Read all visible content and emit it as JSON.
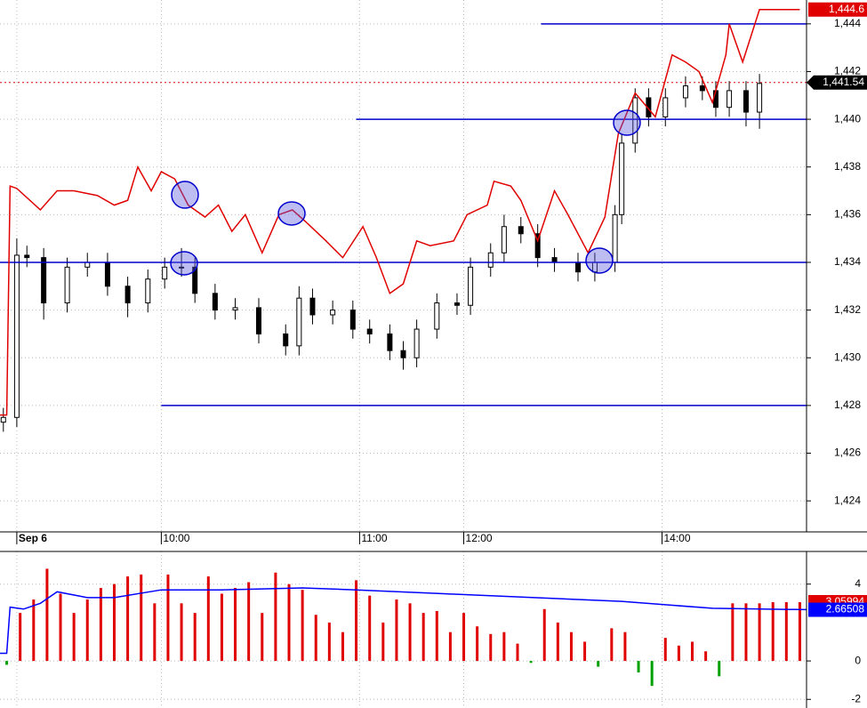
{
  "chart_data": [
    {
      "type": "candlestick",
      "x": [
        1,
        5,
        8,
        13,
        20,
        26,
        32,
        38,
        44,
        49,
        54,
        58,
        64,
        70,
        77,
        85,
        89,
        93,
        99,
        105,
        110,
        116,
        120,
        124,
        130,
        136,
        140,
        146,
        150,
        155,
        160,
        165,
        172,
        177,
        183,
        185,
        189,
        193,
        198,
        204,
        209,
        213,
        217,
        222,
        226
      ],
      "open": [
        1427.3,
        1427.5,
        1434.3,
        1434.2,
        1432.3,
        1433.8,
        1434.0,
        1433.0,
        1432.3,
        1433.3,
        1433.8,
        1433.8,
        1432.7,
        1432.0,
        1432.1,
        1431.0,
        1430.5,
        1432.5,
        1431.8,
        1432.0,
        1431.2,
        1431.0,
        1430.3,
        1430.0,
        1431.2,
        1432.3,
        1432.2,
        1433.8,
        1434.4,
        1435.5,
        1435.2,
        1434.2,
        1434.0,
        1433.6,
        1434.0,
        1436.0,
        1439.0,
        1440.9,
        1440.1,
        1440.9,
        1441.4,
        1441.2,
        1440.5,
        1441.2,
        1440.3
      ],
      "high": [
        1427.9,
        1435.0,
        1434.7,
        1434.6,
        1434.2,
        1434.4,
        1434.4,
        1433.4,
        1433.7,
        1434.2,
        1434.6,
        1434.2,
        1433.1,
        1432.5,
        1432.5,
        1431.4,
        1433.0,
        1432.9,
        1432.4,
        1432.4,
        1431.6,
        1431.4,
        1430.7,
        1431.6,
        1432.7,
        1432.7,
        1434.2,
        1434.8,
        1436.0,
        1435.9,
        1435.6,
        1434.6,
        1434.4,
        1434.4,
        1436.4,
        1439.4,
        1441.3,
        1441.3,
        1441.3,
        1441.8,
        1441.8,
        1441.6,
        1441.6,
        1441.6,
        1441.9
      ],
      "low": [
        1426.9,
        1427.1,
        1433.8,
        1431.6,
        1431.9,
        1433.4,
        1432.6,
        1431.7,
        1431.9,
        1432.9,
        1433.4,
        1432.3,
        1431.6,
        1431.6,
        1430.6,
        1430.1,
        1430.1,
        1431.4,
        1431.4,
        1430.8,
        1430.6,
        1429.9,
        1429.5,
        1429.6,
        1430.8,
        1431.8,
        1431.8,
        1433.4,
        1434.0,
        1434.8,
        1433.8,
        1433.6,
        1433.2,
        1433.2,
        1433.6,
        1435.6,
        1438.6,
        1439.7,
        1439.7,
        1440.5,
        1440.8,
        1440.1,
        1440.1,
        1439.7,
        1439.6
      ],
      "close": [
        1427.5,
        1434.3,
        1434.2,
        1432.3,
        1433.8,
        1434.0,
        1433.0,
        1432.3,
        1433.3,
        1433.8,
        1433.8,
        1432.7,
        1432.0,
        1432.1,
        1431.0,
        1430.5,
        1432.5,
        1431.8,
        1432.0,
        1431.2,
        1431.0,
        1430.3,
        1430.0,
        1431.2,
        1432.3,
        1432.2,
        1433.8,
        1434.4,
        1435.5,
        1435.2,
        1434.2,
        1434.0,
        1433.6,
        1434.0,
        1436.0,
        1439.0,
        1440.9,
        1440.1,
        1440.9,
        1441.4,
        1441.2,
        1440.5,
        1441.2,
        1440.3,
        1441.5
      ],
      "color": "#000000",
      "xlim": [
        0,
        240
      ],
      "xticks": [
        {
          "value": 5,
          "label": "Sep 6"
        },
        {
          "value": 48,
          "label": "10:00"
        },
        {
          "value": 107,
          "label": "11:00"
        },
        {
          "value": 138,
          "label": "12:00"
        },
        {
          "value": 197,
          "label": "14:00"
        }
      ],
      "ylim": [
        1422.7,
        1445.0
      ],
      "yticks": [
        {
          "value": 1424,
          "label": "1,424"
        },
        {
          "value": 1426,
          "label": "1,426"
        },
        {
          "value": 1428,
          "label": "1,428"
        },
        {
          "value": 1430,
          "label": "1,430"
        },
        {
          "value": 1432,
          "label": "1,432"
        },
        {
          "value": 1434,
          "label": "1,434"
        },
        {
          "value": 1436,
          "label": "1,436"
        },
        {
          "value": 1438,
          "label": "1,438"
        },
        {
          "value": 1440,
          "label": "1,440"
        },
        {
          "value": 1442,
          "label": "1,442"
        },
        {
          "value": 1444,
          "label": "1,444"
        }
      ],
      "grid": true,
      "lines": [
        {
          "color": "#e00000",
          "x": [
            0,
            2,
            3,
            5,
            12,
            17,
            22,
            29,
            34,
            38,
            41,
            45,
            48,
            52,
            56,
            61,
            65,
            69,
            73,
            78,
            83,
            87,
            91,
            97,
            102,
            108,
            112,
            116,
            120,
            124,
            128,
            135,
            139,
            145,
            147,
            152,
            155,
            160,
            165,
            169,
            175,
            180,
            184,
            189,
            195,
            200,
            204,
            208,
            212,
            216,
            217,
            221,
            226,
            238
          ],
          "values": [
            1427.6,
            1427.6,
            1437.2,
            1437.1,
            1436.2,
            1437.0,
            1437.0,
            1436.8,
            1436.4,
            1436.6,
            1438.0,
            1437.0,
            1437.8,
            1437.5,
            1436.4,
            1435.9,
            1436.4,
            1435.3,
            1436.0,
            1434.4,
            1436.0,
            1436.2,
            1435.7,
            1434.9,
            1434.2,
            1435.5,
            1434.2,
            1432.7,
            1433.1,
            1434.9,
            1434.7,
            1434.9,
            1436.0,
            1436.4,
            1437.4,
            1437.2,
            1436.6,
            1434.9,
            1437.0,
            1436.0,
            1434.4,
            1435.9,
            1439.4,
            1441.1,
            1440.1,
            1442.7,
            1442.4,
            1442.0,
            1440.7,
            1442.7,
            1444.0,
            1442.4,
            1444.6,
            1444.6
          ]
        }
      ],
      "levels": [
        {
          "value": 1444,
          "x": [
            161,
            240
          ],
          "color": "#0000cc"
        },
        {
          "value": 1440,
          "x": [
            106,
            240
          ],
          "color": "#0000cc"
        },
        {
          "value": 1434,
          "x": [
            0,
            240
          ],
          "color": "#0000cc"
        },
        {
          "value": 1428,
          "x": [
            48,
            240
          ],
          "color": "#0000cc"
        }
      ],
      "last_labels": [
        {
          "value": 1444.6,
          "label": "1,444.6",
          "color": "#e00000"
        },
        {
          "value": 1441.54,
          "label": "1,441.54",
          "color": "#000000",
          "dash_color": "#e00000"
        }
      ]
    },
    {
      "type": "bar",
      "x": [
        2,
        6,
        10,
        14,
        18,
        22,
        26,
        30,
        34,
        38,
        42,
        46,
        50,
        54,
        58,
        62,
        66,
        70,
        74,
        78,
        82,
        86,
        90,
        94,
        98,
        102,
        106,
        110,
        114,
        118,
        122,
        126,
        130,
        134,
        138,
        142,
        146,
        150,
        154,
        158,
        162,
        166,
        170,
        174,
        178,
        182,
        186,
        190,
        194,
        198,
        202,
        206,
        210,
        214,
        218,
        222,
        226,
        230,
        234,
        238
      ],
      "values": [
        -0.2,
        2.5,
        3.2,
        4.8,
        3.5,
        2.5,
        3.2,
        3.8,
        4.0,
        4.4,
        4.5,
        3.0,
        4.5,
        3.0,
        2.5,
        4.4,
        3.5,
        3.8,
        4.1,
        2.5,
        4.6,
        4.0,
        3.7,
        2.4,
        2.0,
        1.5,
        4.2,
        3.4,
        2.0,
        3.2,
        3.0,
        2.5,
        2.6,
        1.5,
        2.5,
        1.8,
        1.4,
        1.5,
        0.9,
        -0.1,
        2.7,
        2.0,
        1.5,
        1.0,
        -0.3,
        1.7,
        1.5,
        -0.6,
        -1.3,
        1.2,
        0.8,
        1.0,
        0.5,
        -0.8,
        3.0,
        3.0,
        3.0,
        3.06,
        3.06,
        3.06
      ],
      "color": "#e00000",
      "negative_color": "#00a000",
      "xlim": [
        0,
        240
      ],
      "ylim": [
        -2.45,
        5.7
      ],
      "yticks": [
        -2,
        0,
        4
      ],
      "grid": true,
      "lines": [
        {
          "color": "#0000ff",
          "x": [
            0,
            2,
            3,
            7,
            12,
            17,
            26,
            34,
            48,
            66,
            90,
            106,
            132,
            159,
            185,
            212,
            240
          ],
          "values": [
            0.4,
            0.4,
            2.8,
            2.7,
            3.0,
            3.6,
            3.3,
            3.3,
            3.7,
            3.7,
            3.8,
            3.7,
            3.5,
            3.3,
            3.1,
            2.74,
            2.67
          ]
        }
      ],
      "last_labels": [
        {
          "value": 3.05994,
          "label": "3.05994",
          "color": "#e00000"
        },
        {
          "value": 2.66508,
          "label": "2.66508",
          "color": "#0000ff"
        }
      ]
    }
  ]
}
